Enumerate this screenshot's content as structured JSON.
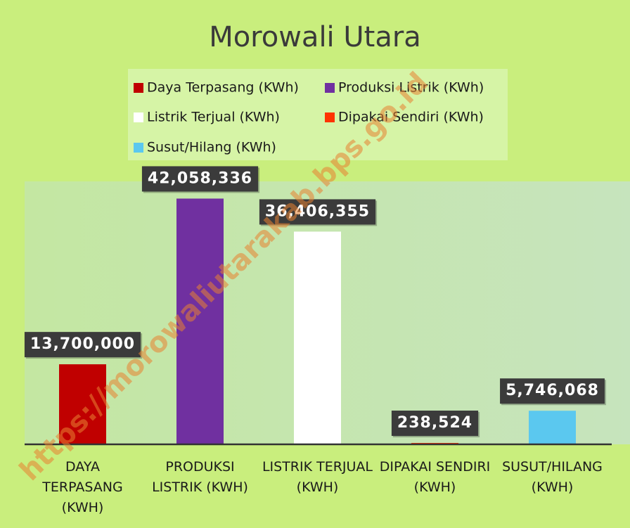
{
  "chart_data": {
    "type": "bar",
    "title": "Morowali Utara",
    "categories": [
      "DAYA TERPASANG (KWH)",
      "PRODUKSI LISTRIK (KWH)",
      "LISTRIK TERJUAL (KWH)",
      "DIPAKAI SENDIRI (KWH)",
      "SUSUT/HILANG (KWH)"
    ],
    "legend": [
      "Daya Terpasang (KWh)",
      "Produksi Listrik (KWh)",
      "Listrik Terjual (KWh)",
      "Dipakai Sendiri (KWh)",
      "Susut/Hilang (KWh)"
    ],
    "values": [
      13700000,
      42058336,
      36406355,
      238524,
      5746068
    ],
    "value_labels": [
      "13,700,000",
      "42,058,336",
      "36,406,355",
      "238,524",
      "5,746,068"
    ],
    "colors": [
      "#c00000",
      "#7030a0",
      "#ffffff",
      "#ff3300",
      "#5bc8ef"
    ],
    "ylim": [
      0,
      45000000
    ],
    "watermark": "https://morowaliutarakab.bps.go.id"
  }
}
